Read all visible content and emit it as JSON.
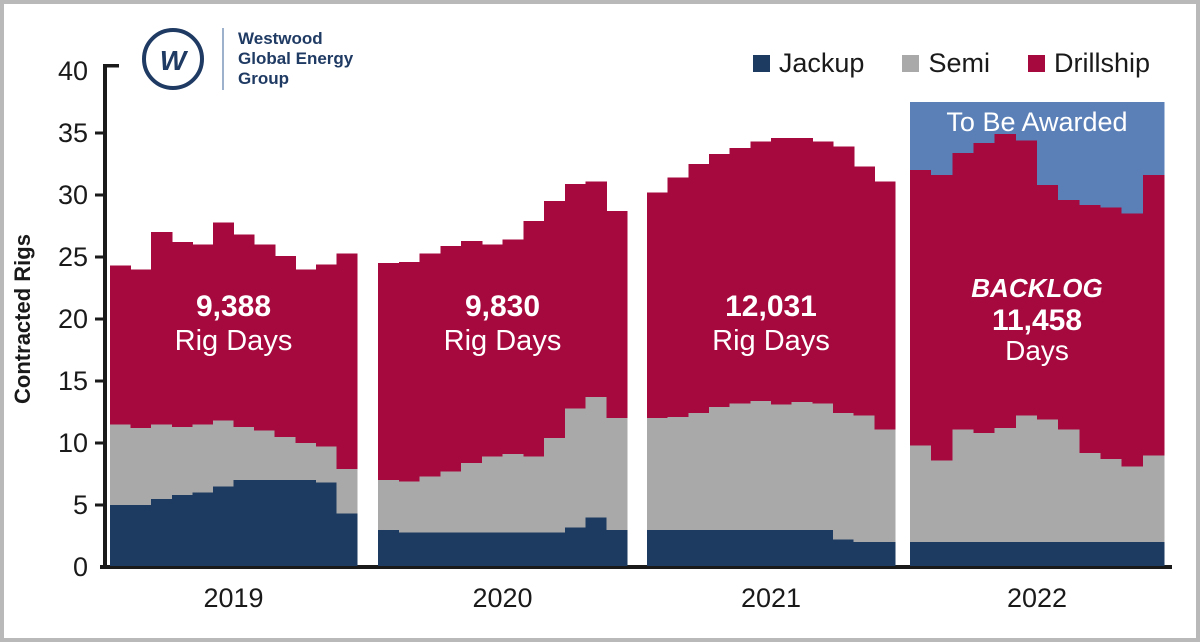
{
  "logo": {
    "mark": "W",
    "lines": [
      "Westwood",
      "Global Energy",
      "Group"
    ]
  },
  "legend": [
    {
      "label": "Jackup",
      "color": "#1d3a60"
    },
    {
      "label": "Semi",
      "color": "#a9a9aa"
    },
    {
      "label": "Drillship",
      "color": "#a6093d"
    }
  ],
  "chart_data": {
    "type": "bar",
    "stacked": true,
    "title": "",
    "xlabel": "",
    "ylabel": "Contracted Rigs",
    "ylim": [
      0,
      40
    ],
    "yticks": [
      0,
      5,
      10,
      15,
      20,
      25,
      30,
      35,
      40
    ],
    "grid": false,
    "legend_position": "top-right",
    "bars_per_group": 12,
    "colors": {
      "jackup": "#1d3a60",
      "semi": "#a9a9aa",
      "drillship": "#a6093d",
      "to_be_awarded": "#5b80b8",
      "annotation_text": "#ffffff",
      "axis": "#1a1a1a"
    },
    "groups": [
      {
        "year": "2019",
        "annotation": [
          "9,388",
          "Rig Days"
        ],
        "jackup": [
          5.0,
          5.0,
          5.5,
          5.8,
          6.0,
          6.5,
          7.0,
          7.0,
          7.0,
          7.0,
          6.8,
          4.3
        ],
        "semi": [
          6.5,
          6.2,
          6.0,
          5.5,
          5.5,
          5.3,
          4.3,
          4.0,
          3.5,
          3.0,
          2.9,
          3.6
        ],
        "drillship": [
          12.8,
          12.8,
          15.5,
          14.9,
          14.5,
          16.0,
          15.5,
          15.0,
          14.6,
          14.0,
          14.7,
          17.4
        ]
      },
      {
        "year": "2020",
        "annotation": [
          "9,830",
          "Rig Days"
        ],
        "jackup": [
          3.0,
          2.8,
          2.8,
          2.8,
          2.8,
          2.8,
          2.8,
          2.8,
          2.8,
          3.2,
          4.0,
          3.0
        ],
        "semi": [
          4.0,
          4.1,
          4.5,
          4.9,
          5.6,
          6.1,
          6.3,
          6.1,
          7.6,
          9.6,
          9.7,
          9.0
        ],
        "drillship": [
          17.5,
          17.7,
          18.0,
          18.2,
          17.9,
          17.1,
          17.3,
          19.0,
          19.1,
          18.1,
          17.4,
          16.7
        ]
      },
      {
        "year": "2021",
        "annotation": [
          "12,031",
          "Rig Days"
        ],
        "jackup": [
          3.0,
          3.0,
          3.0,
          3.0,
          3.0,
          3.0,
          3.0,
          3.0,
          3.0,
          2.2,
          2.0,
          2.0
        ],
        "semi": [
          9.0,
          9.1,
          9.4,
          9.9,
          10.2,
          10.4,
          10.1,
          10.3,
          10.2,
          10.2,
          10.2,
          9.1
        ],
        "drillship": [
          18.2,
          19.3,
          20.1,
          20.4,
          20.6,
          20.9,
          21.5,
          21.3,
          21.1,
          21.5,
          20.1,
          20.0
        ]
      },
      {
        "year": "2022",
        "annotation": [
          "BACKLOG",
          "11,458",
          "Days"
        ],
        "tba_label": "To Be Awarded",
        "tba_top": 37.5,
        "jackup": [
          2.0,
          2.0,
          2.0,
          2.0,
          2.0,
          2.0,
          2.0,
          2.0,
          2.0,
          2.0,
          2.0,
          2.0
        ],
        "semi": [
          7.8,
          6.6,
          9.1,
          8.8,
          9.2,
          10.2,
          9.9,
          9.1,
          7.2,
          6.7,
          6.1,
          7.0
        ],
        "drillship": [
          22.2,
          23.0,
          22.3,
          23.4,
          23.7,
          22.2,
          18.9,
          18.5,
          20.0,
          20.3,
          20.4,
          22.6
        ]
      }
    ]
  }
}
